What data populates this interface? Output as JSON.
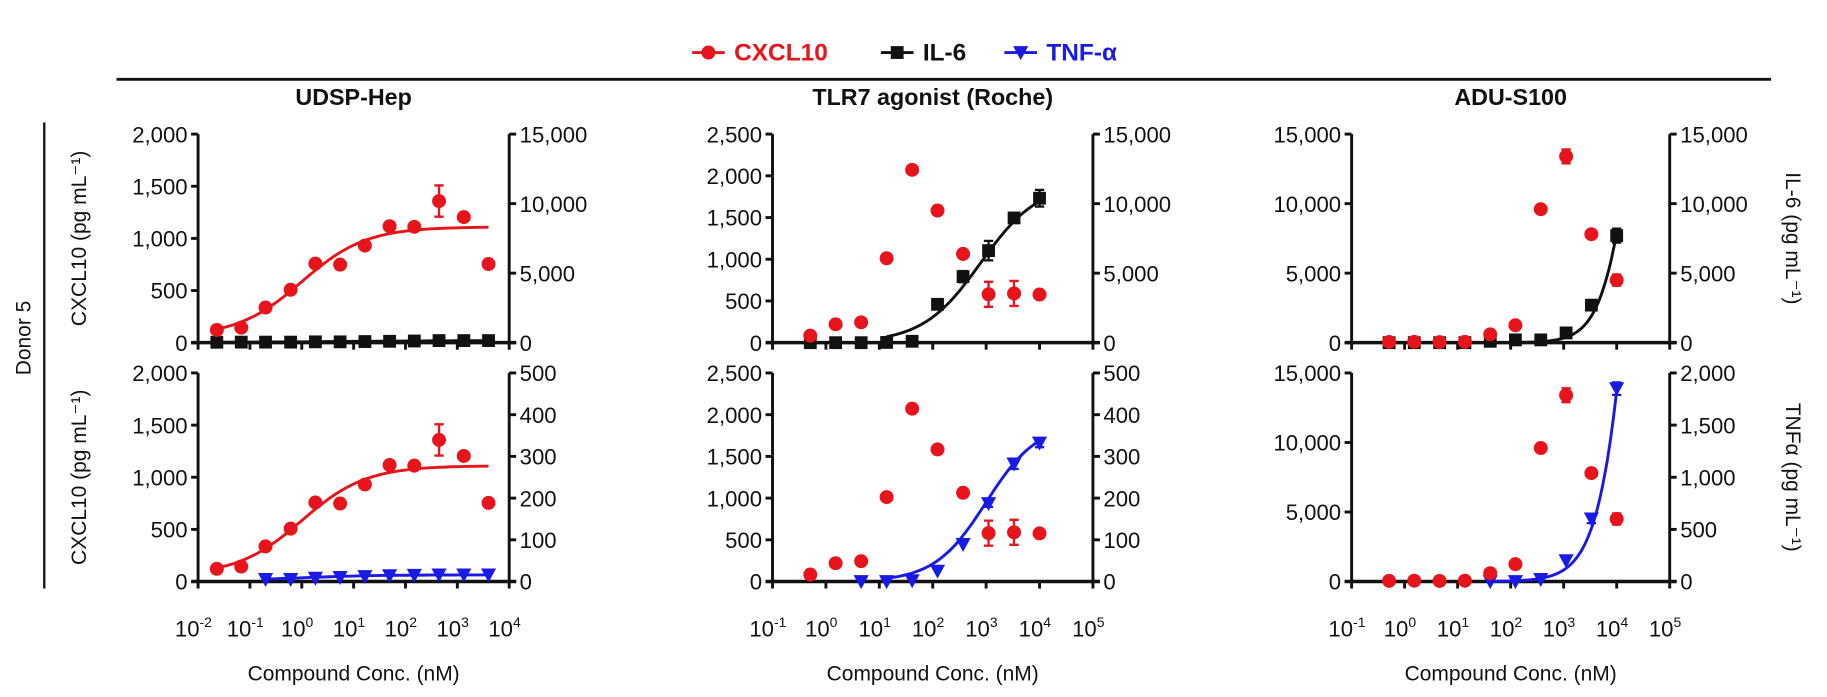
{
  "legend": [
    {
      "name": "CXCL10",
      "color": "#e8141b",
      "marker": "circle"
    },
    {
      "name": "IL-6",
      "color": "#111111",
      "marker": "square"
    },
    {
      "name": "TNF-α",
      "color": "#1a1ae6",
      "marker": "triangle-down"
    }
  ],
  "row_label": "Donor 5",
  "chart_data": [
    {
      "type": "scatter",
      "row": 0,
      "col": 0,
      "title": "UDSP-Hep",
      "xlabel": "",
      "ylabel_left": "CXCL10 (pg mL⁻¹)",
      "ylabel_right": "",
      "xscale": "log",
      "xlim_exp": [
        -2,
        4
      ],
      "xtick_exps": [
        "-2",
        "-1",
        "0",
        "1",
        "2",
        "3",
        "4"
      ],
      "show_xtick_labels": false,
      "ylim_left": [
        0,
        2000
      ],
      "yticks_left": [
        0,
        500,
        1000,
        1500,
        2000
      ],
      "yticklabels_left": [
        "0",
        "500",
        "1,000",
        "1,500",
        "2,000"
      ],
      "ylim_right": [
        0,
        15000
      ],
      "yticks_right": [
        0,
        5000,
        10000,
        15000
      ],
      "yticklabels_right": [
        "0",
        "5,000",
        "10,000",
        "15,000"
      ],
      "x": [
        0.023,
        0.068,
        0.2,
        0.61,
        1.83,
        5.49,
        16.5,
        49.4,
        148,
        444,
        1333,
        4000
      ],
      "series": [
        {
          "name": "CXCL10",
          "axis": "left",
          "y": [
            122,
            144,
            337,
            507,
            758,
            748,
            931,
            1117,
            1111,
            1358,
            1204,
            754
          ],
          "err": [
            40,
            0,
            0,
            0,
            0,
            0,
            0,
            40,
            0,
            150,
            0,
            0
          ],
          "fit": {
            "bottom": 60,
            "top": 1110,
            "log_ec50": 0,
            "hill": 0.7,
            "x_range": [
              0.023,
              4000
            ]
          }
        },
        {
          "name": "IL-6",
          "axis": "right",
          "y": [
            30,
            40,
            40,
            40,
            60,
            60,
            80,
            100,
            120,
            150,
            150,
            150
          ],
          "err": [
            0,
            0,
            0,
            0,
            0,
            0,
            0,
            0,
            0,
            0,
            0,
            0
          ],
          "fit": {
            "bottom": 30,
            "top": 150,
            "log_ec50": 1,
            "hill": 0.5,
            "x_range": [
              0.023,
              4000
            ]
          }
        }
      ]
    },
    {
      "type": "scatter",
      "row": 0,
      "col": 1,
      "title": "TLR7 agonist (Roche)",
      "xlabel": "",
      "ylabel_left": "",
      "ylabel_right": "",
      "xscale": "log",
      "xlim_exp": [
        -1,
        5
      ],
      "xtick_exps": [
        "-1",
        "0",
        "1",
        "2",
        "3",
        "4",
        "5"
      ],
      "show_xtick_labels": false,
      "ylim_left": [
        0,
        2500
      ],
      "yticks_left": [
        0,
        500,
        1000,
        1500,
        2000,
        2500
      ],
      "yticklabels_left": [
        "0",
        "500",
        "1,000",
        "1,500",
        "2,000",
        "2,500"
      ],
      "ylim_right": [
        0,
        15000
      ],
      "yticks_right": [
        0,
        5000,
        10000,
        15000
      ],
      "yticklabels_right": [
        "0",
        "5,000",
        "10,000",
        "15,000"
      ],
      "x": [
        0.51,
        1.52,
        4.57,
        13.7,
        41.2,
        123,
        370,
        1111,
        3333,
        10000
      ],
      "series": [
        {
          "name": "CXCL10",
          "axis": "left",
          "y": [
            84,
            220,
            244,
            1012,
            2072,
            1584,
            1064,
            580,
            590,
            577
          ],
          "err": [
            0,
            0,
            0,
            0,
            0,
            50,
            0,
            150,
            150,
            0
          ]
        },
        {
          "name": "IL-6",
          "axis": "right",
          "y": [
            0,
            0,
            0,
            20,
            100,
            2760,
            4750,
            6620,
            8970,
            10390
          ],
          "err": [
            0,
            0,
            0,
            0,
            0,
            300,
            400,
            700,
            300,
            600
          ],
          "fit": {
            "bottom": 0,
            "top": 11500,
            "log_ec50": 2.9,
            "hill": 0.8,
            "x_range": [
              13.7,
              10000
            ]
          }
        }
      ]
    },
    {
      "type": "scatter",
      "row": 0,
      "col": 2,
      "title": "ADU-S100",
      "xlabel": "",
      "ylabel_left": "",
      "ylabel_right": "IL-6 (pg mL⁻¹)",
      "xscale": "log",
      "xlim_exp": [
        -1,
        5
      ],
      "xtick_exps": [
        "-1",
        "0",
        "1",
        "2",
        "3",
        "4",
        "5"
      ],
      "show_xtick_labels": false,
      "ylim_left": [
        0,
        15000
      ],
      "yticks_left": [
        0,
        5000,
        10000,
        15000
      ],
      "yticklabels_left": [
        "0",
        "5,000",
        "10,000",
        "15,000"
      ],
      "ylim_right": [
        0,
        15000
      ],
      "yticks_right": [
        0,
        5000,
        10000,
        15000
      ],
      "yticklabels_right": [
        "0",
        "5,000",
        "10,000",
        "15,000"
      ],
      "x": [
        0.51,
        1.52,
        4.57,
        13.7,
        41.2,
        123,
        370,
        1111,
        3333,
        10000
      ],
      "series": [
        {
          "name": "CXCL10",
          "axis": "left",
          "y": [
            50,
            60,
            40,
            60,
            600,
            1250,
            9600,
            13400,
            7800,
            4500
          ],
          "err": [
            0,
            0,
            0,
            0,
            0,
            0,
            0,
            500,
            0,
            400
          ]
        },
        {
          "name": "IL-6",
          "axis": "right",
          "y": [
            0,
            0,
            0,
            0,
            100,
            200,
            200,
            700,
            2700,
            7700
          ],
          "err": [
            0,
            0,
            0,
            0,
            0,
            0,
            0,
            0,
            300,
            500
          ],
          "fit": {
            "bottom": 0,
            "top": 30000,
            "log_ec50": 4.3,
            "hill": 1.5,
            "x_range": [
              123,
              10000
            ]
          }
        }
      ]
    },
    {
      "type": "scatter",
      "row": 1,
      "col": 0,
      "title": "",
      "xlabel": "Compound Conc. (nM)",
      "ylabel_left": "CXCL10 (pg mL⁻¹)",
      "ylabel_right": "",
      "xscale": "log",
      "xlim_exp": [
        -2,
        4
      ],
      "xtick_exps": [
        "-2",
        "-1",
        "0",
        "1",
        "2",
        "3",
        "4"
      ],
      "show_xtick_labels": true,
      "ylim_left": [
        0,
        2000
      ],
      "yticks_left": [
        0,
        500,
        1000,
        1500,
        2000
      ],
      "yticklabels_left": [
        "0",
        "500",
        "1,000",
        "1,500",
        "2,000"
      ],
      "ylim_right": [
        0,
        500
      ],
      "yticks_right": [
        0,
        100,
        200,
        300,
        400,
        500
      ],
      "yticklabels_right": [
        "0",
        "100",
        "200",
        "300",
        "400",
        "500"
      ],
      "x": [
        0.023,
        0.068,
        0.2,
        0.61,
        1.83,
        5.49,
        16.5,
        49.4,
        148,
        444,
        1333,
        4000
      ],
      "series": [
        {
          "name": "CXCL10",
          "axis": "left",
          "y": [
            122,
            144,
            337,
            507,
            758,
            748,
            931,
            1117,
            1111,
            1358,
            1204,
            754
          ],
          "err": [
            40,
            0,
            0,
            0,
            0,
            0,
            0,
            40,
            0,
            150,
            0,
            0
          ],
          "fit": {
            "bottom": 60,
            "top": 1110,
            "log_ec50": 0,
            "hill": 0.7,
            "x_range": [
              0.023,
              4000
            ]
          }
        },
        {
          "name": "TNF-α",
          "axis": "right",
          "y": [
            null,
            null,
            5,
            5,
            8,
            10,
            12,
            14,
            15,
            16,
            16,
            16
          ],
          "err": [
            0,
            0,
            0,
            0,
            0,
            0,
            0,
            0,
            0,
            0,
            0,
            0
          ],
          "fit": {
            "bottom": 2,
            "top": 16,
            "log_ec50": 0,
            "hill": 0.6,
            "x_range": [
              0.2,
              4000
            ]
          }
        }
      ]
    },
    {
      "type": "scatter",
      "row": 1,
      "col": 1,
      "title": "",
      "xlabel": "Compound Conc. (nM)",
      "ylabel_left": "",
      "ylabel_right": "",
      "xscale": "log",
      "xlim_exp": [
        -1,
        5
      ],
      "xtick_exps": [
        "-1",
        "0",
        "1",
        "2",
        "3",
        "4",
        "5"
      ],
      "show_xtick_labels": true,
      "ylim_left": [
        0,
        2500
      ],
      "yticks_left": [
        0,
        500,
        1000,
        1500,
        2000,
        2500
      ],
      "yticklabels_left": [
        "0",
        "500",
        "1,000",
        "1,500",
        "2,000",
        "2,500"
      ],
      "ylim_right": [
        0,
        500
      ],
      "yticks_right": [
        0,
        100,
        200,
        300,
        400,
        500
      ],
      "yticklabels_right": [
        "0",
        "100",
        "200",
        "300",
        "400",
        "500"
      ],
      "x": [
        0.51,
        1.52,
        4.57,
        13.7,
        41.2,
        123,
        370,
        1111,
        3333,
        10000
      ],
      "series": [
        {
          "name": "CXCL10",
          "axis": "left",
          "y": [
            84,
            220,
            244,
            1012,
            2072,
            1584,
            1064,
            580,
            590,
            577
          ],
          "err": [
            0,
            0,
            0,
            0,
            0,
            50,
            0,
            150,
            150,
            0
          ]
        },
        {
          "name": "TNF-α",
          "axis": "right",
          "y": [
            null,
            null,
            0,
            0,
            2,
            25,
            89,
            187,
            282,
            332
          ],
          "err": [
            0,
            0,
            0,
            0,
            0,
            0,
            0,
            8,
            12,
            10
          ],
          "fit": {
            "bottom": 0,
            "top": 380,
            "log_ec50": 3.0,
            "hill": 0.9,
            "x_range": [
              13.7,
              10000
            ]
          }
        }
      ]
    },
    {
      "type": "scatter",
      "row": 1,
      "col": 2,
      "title": "",
      "xlabel": "Compound Conc. (nM)",
      "ylabel_left": "",
      "ylabel_right": "TNFα (pg mL⁻¹)",
      "xscale": "log",
      "xlim_exp": [
        -1,
        5
      ],
      "xtick_exps": [
        "-1",
        "0",
        "1",
        "2",
        "3",
        "4",
        "5"
      ],
      "show_xtick_labels": true,
      "ylim_left": [
        0,
        15000
      ],
      "yticks_left": [
        0,
        5000,
        10000,
        15000
      ],
      "yticklabels_left": [
        "0",
        "5,000",
        "10,000",
        "15,000"
      ],
      "ylim_right": [
        0,
        2000
      ],
      "yticks_right": [
        0,
        500,
        1000,
        1500,
        2000
      ],
      "yticklabels_right": [
        "0",
        "500",
        "1,000",
        "1,500",
        "2,000"
      ],
      "x": [
        0.51,
        1.52,
        4.57,
        13.7,
        41.2,
        123,
        370,
        1111,
        3333,
        10000
      ],
      "series": [
        {
          "name": "CXCL10",
          "axis": "left",
          "y": [
            50,
            60,
            40,
            60,
            600,
            1250,
            9600,
            13400,
            7800,
            4500
          ],
          "err": [
            0,
            0,
            0,
            0,
            0,
            0,
            0,
            500,
            0,
            400
          ]
        },
        {
          "name": "TNF-α",
          "axis": "right",
          "y": [
            null,
            null,
            null,
            null,
            0,
            0,
            20,
            200,
            600,
            1850
          ],
          "err": [
            0,
            0,
            0,
            0,
            0,
            0,
            0,
            0,
            40,
            60
          ],
          "fit": {
            "bottom": 0,
            "top": 10000,
            "log_ec50": 4.5,
            "hill": 1.3,
            "x_range": [
              41.2,
              10000
            ]
          }
        }
      ]
    }
  ]
}
